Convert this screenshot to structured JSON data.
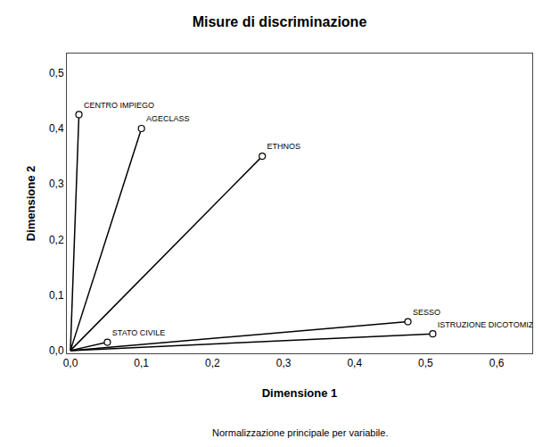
{
  "chart_data": {
    "type": "scatter",
    "title": "Misure di discriminazione",
    "x_label": "Dimensione 1",
    "y_label": "Dimensione 2",
    "annotations": [
      "Normalizzazione principale per variabile."
    ],
    "labels": [
      "CENTRO IMPIEGO",
      "AGECLASS",
      "ETHNOS",
      "STATO CIVILE",
      "SESSO",
      "ISTRUZIONE DICOTOMIZ"
    ],
    "x": [
      0.012,
      0.1,
      0.27,
      0.052,
      0.475,
      0.51
    ],
    "values": [
      0.425,
      0.4,
      0.35,
      0.015,
      0.052,
      0.03
    ],
    "color": "#000000",
    "marker": "circle",
    "line_style": "solid",
    "xlim": [
      -0.005,
      0.65
    ],
    "ylim": [
      -0.005,
      0.535
    ],
    "xticks": [
      {
        "value": 0.0,
        "label": "0,0"
      },
      {
        "value": 0.1,
        "label": "0,1"
      },
      {
        "value": 0.2,
        "label": "0,2"
      },
      {
        "value": 0.3,
        "label": "0,3"
      },
      {
        "value": 0.4,
        "label": "0,4"
      },
      {
        "value": 0.5,
        "label": "0,5"
      },
      {
        "value": 0.6,
        "label": "0,6"
      }
    ],
    "yticks": [
      {
        "value": 0.0,
        "label": "0,0"
      },
      {
        "value": 0.1,
        "label": "0,1"
      },
      {
        "value": 0.2,
        "label": "0,2"
      },
      {
        "value": 0.3,
        "label": "0,3"
      },
      {
        "value": 0.4,
        "label": "0,4"
      },
      {
        "value": 0.5,
        "label": "0,5"
      }
    ],
    "grid": false
  }
}
